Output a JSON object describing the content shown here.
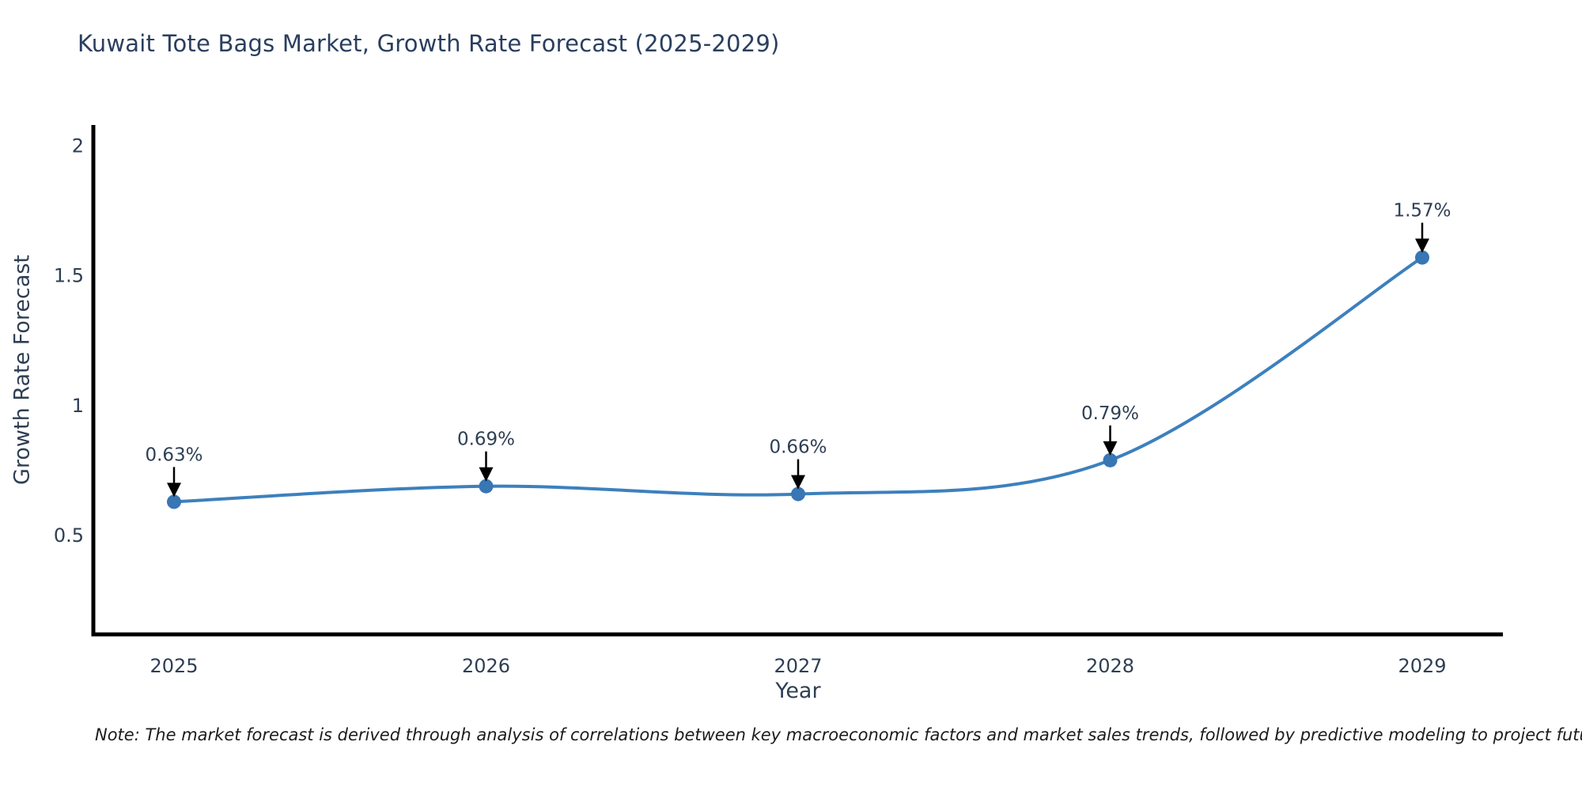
{
  "chart_data": {
    "type": "line",
    "title": "Kuwait Tote Bags Market, Growth Rate Forecast (2025-2029)",
    "xlabel": "Year",
    "ylabel": "Growth Rate Forecast",
    "categories": [
      "2025",
      "2026",
      "2027",
      "2028",
      "2029"
    ],
    "values": [
      0.63,
      0.69,
      0.66,
      0.79,
      1.57
    ],
    "point_labels": [
      "0.63%",
      "0.69%",
      "0.66%",
      "0.79%",
      "1.57%"
    ],
    "yticks": [
      {
        "value": 0.5,
        "label": "0.5"
      },
      {
        "value": 1.0,
        "label": "1"
      },
      {
        "value": 1.5,
        "label": "1.5"
      },
      {
        "value": 2.0,
        "label": "2"
      }
    ],
    "ylim": [
      0.12,
      2.08
    ],
    "grid": false,
    "legend": "none",
    "line_shape": "spline",
    "colors": {
      "line": "#3d80bd",
      "marker": "#3876b4",
      "axis_line": "#000000",
      "tick_text": "#2e3f54",
      "annotation_text": "#2e3f54",
      "annotation_arrow": "#000000",
      "background": "#ffffff"
    }
  },
  "footnote": {
    "text": "Note: The market forecast is derived through analysis of correlations between key macroeconomic factors and market sales trends, followed by predictive modeling to project future sales"
  }
}
